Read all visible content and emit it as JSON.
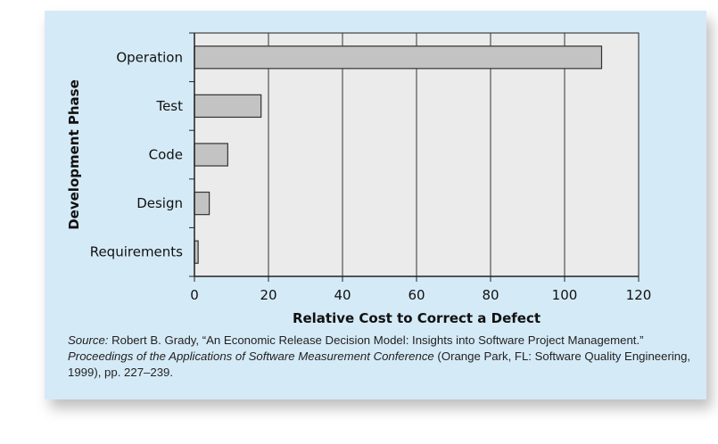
{
  "chart_data": {
    "type": "bar",
    "orientation": "horizontal",
    "categories": [
      "Requirements",
      "Design",
      "Code",
      "Test",
      "Operation"
    ],
    "values": [
      1,
      4,
      9,
      18,
      110
    ],
    "xlabel": "Relative Cost to Correct a Defect",
    "ylabel": "Development Phase",
    "xlim": [
      0,
      120
    ],
    "xticks": [
      "0",
      "20",
      "40",
      "60",
      "80",
      "100",
      "120"
    ],
    "grid": "vertical",
    "colors": {
      "bar": "#c3c3c3",
      "plot_bg": "#ebebeb",
      "panel_bg": "#d5eaf7"
    }
  },
  "source": {
    "label": "Source:",
    "text1": " Robert B. Grady, “An Economic Release Decision Model: Insights into Software Project Management.”",
    "italic": "Proceedings of the Applications of Software Measurement Conference",
    "text2": " (Orange Park, FL: Software Quality Engineering, 1999), pp. 227–239."
  }
}
